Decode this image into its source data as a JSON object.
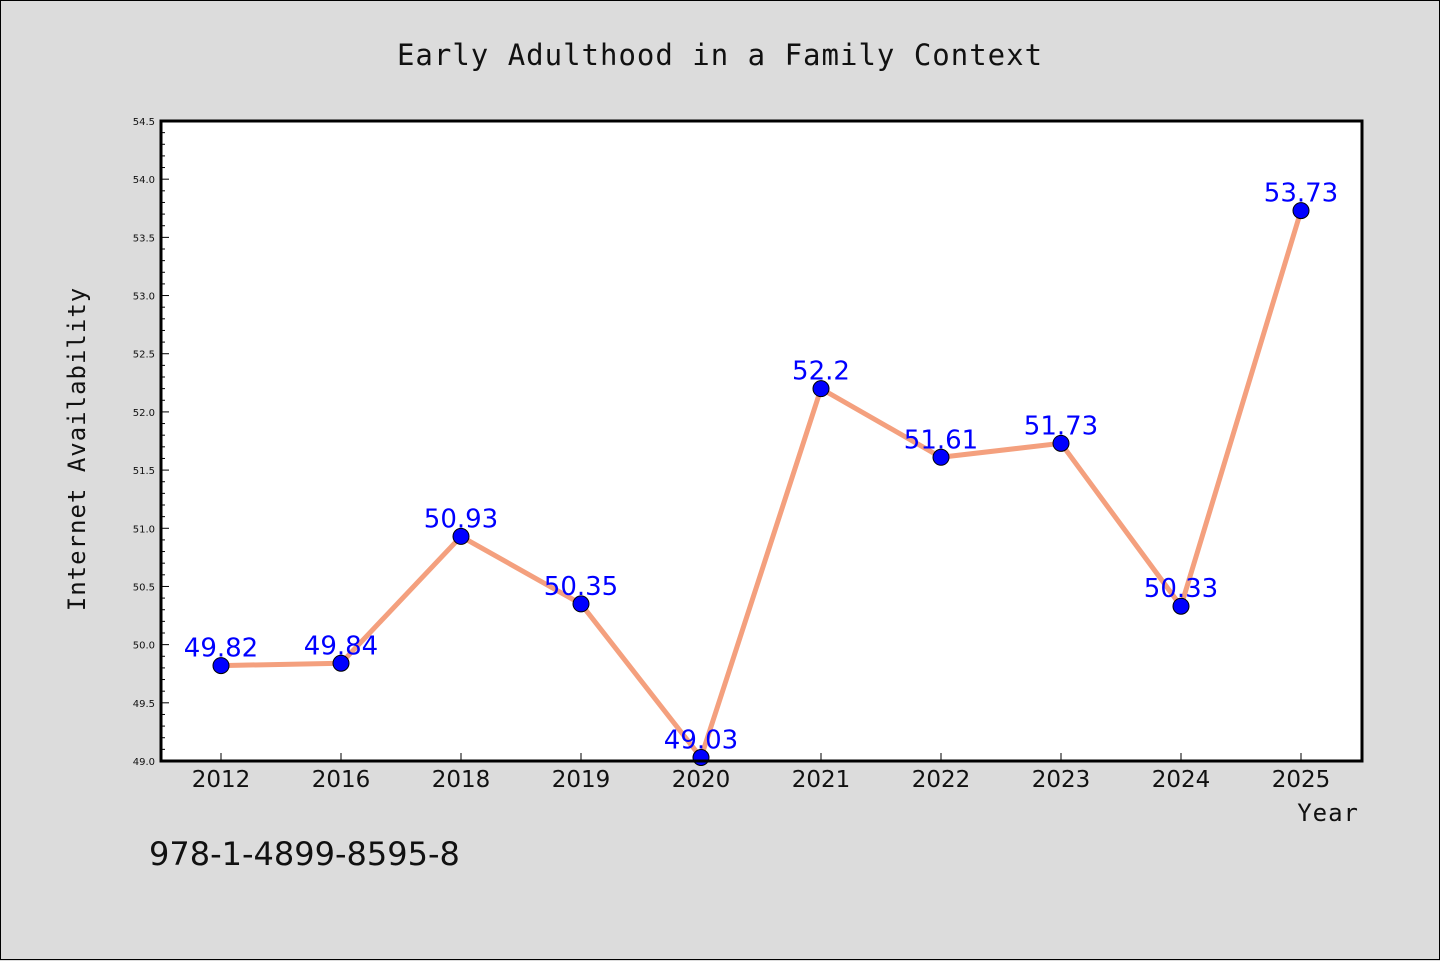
{
  "chart_data": {
    "type": "line",
    "title": "Early Adulthood in a Family Context",
    "xlabel": "Year",
    "ylabel": "Internet Availability",
    "categories": [
      "2012",
      "2016",
      "2018",
      "2019",
      "2020",
      "2021",
      "2022",
      "2023",
      "2024",
      "2025"
    ],
    "values": [
      49.82,
      49.84,
      50.93,
      50.35,
      49.03,
      52.2,
      51.61,
      51.73,
      50.33,
      53.73
    ],
    "data_labels": [
      "49.82",
      "49.84",
      "50.93",
      "50.35",
      "49.03",
      "52.2",
      "51.61",
      "51.73",
      "50.33",
      "53.73"
    ],
    "ylim": [
      49.0,
      54.5
    ],
    "yticks": [
      "49.0",
      "49.5",
      "50.0",
      "50.5",
      "51.0",
      "51.5",
      "52.0",
      "52.5",
      "53.0",
      "53.5",
      "54.0",
      "54.5"
    ],
    "grid": false,
    "line_color": "#f4a07e",
    "marker_color": "#0000ff",
    "label_color": "#0000ff",
    "plot_background": "#ffffff",
    "figure_background": "#dcdcdc"
  },
  "footer": {
    "isbn": "978-1-4899-8595-8"
  }
}
